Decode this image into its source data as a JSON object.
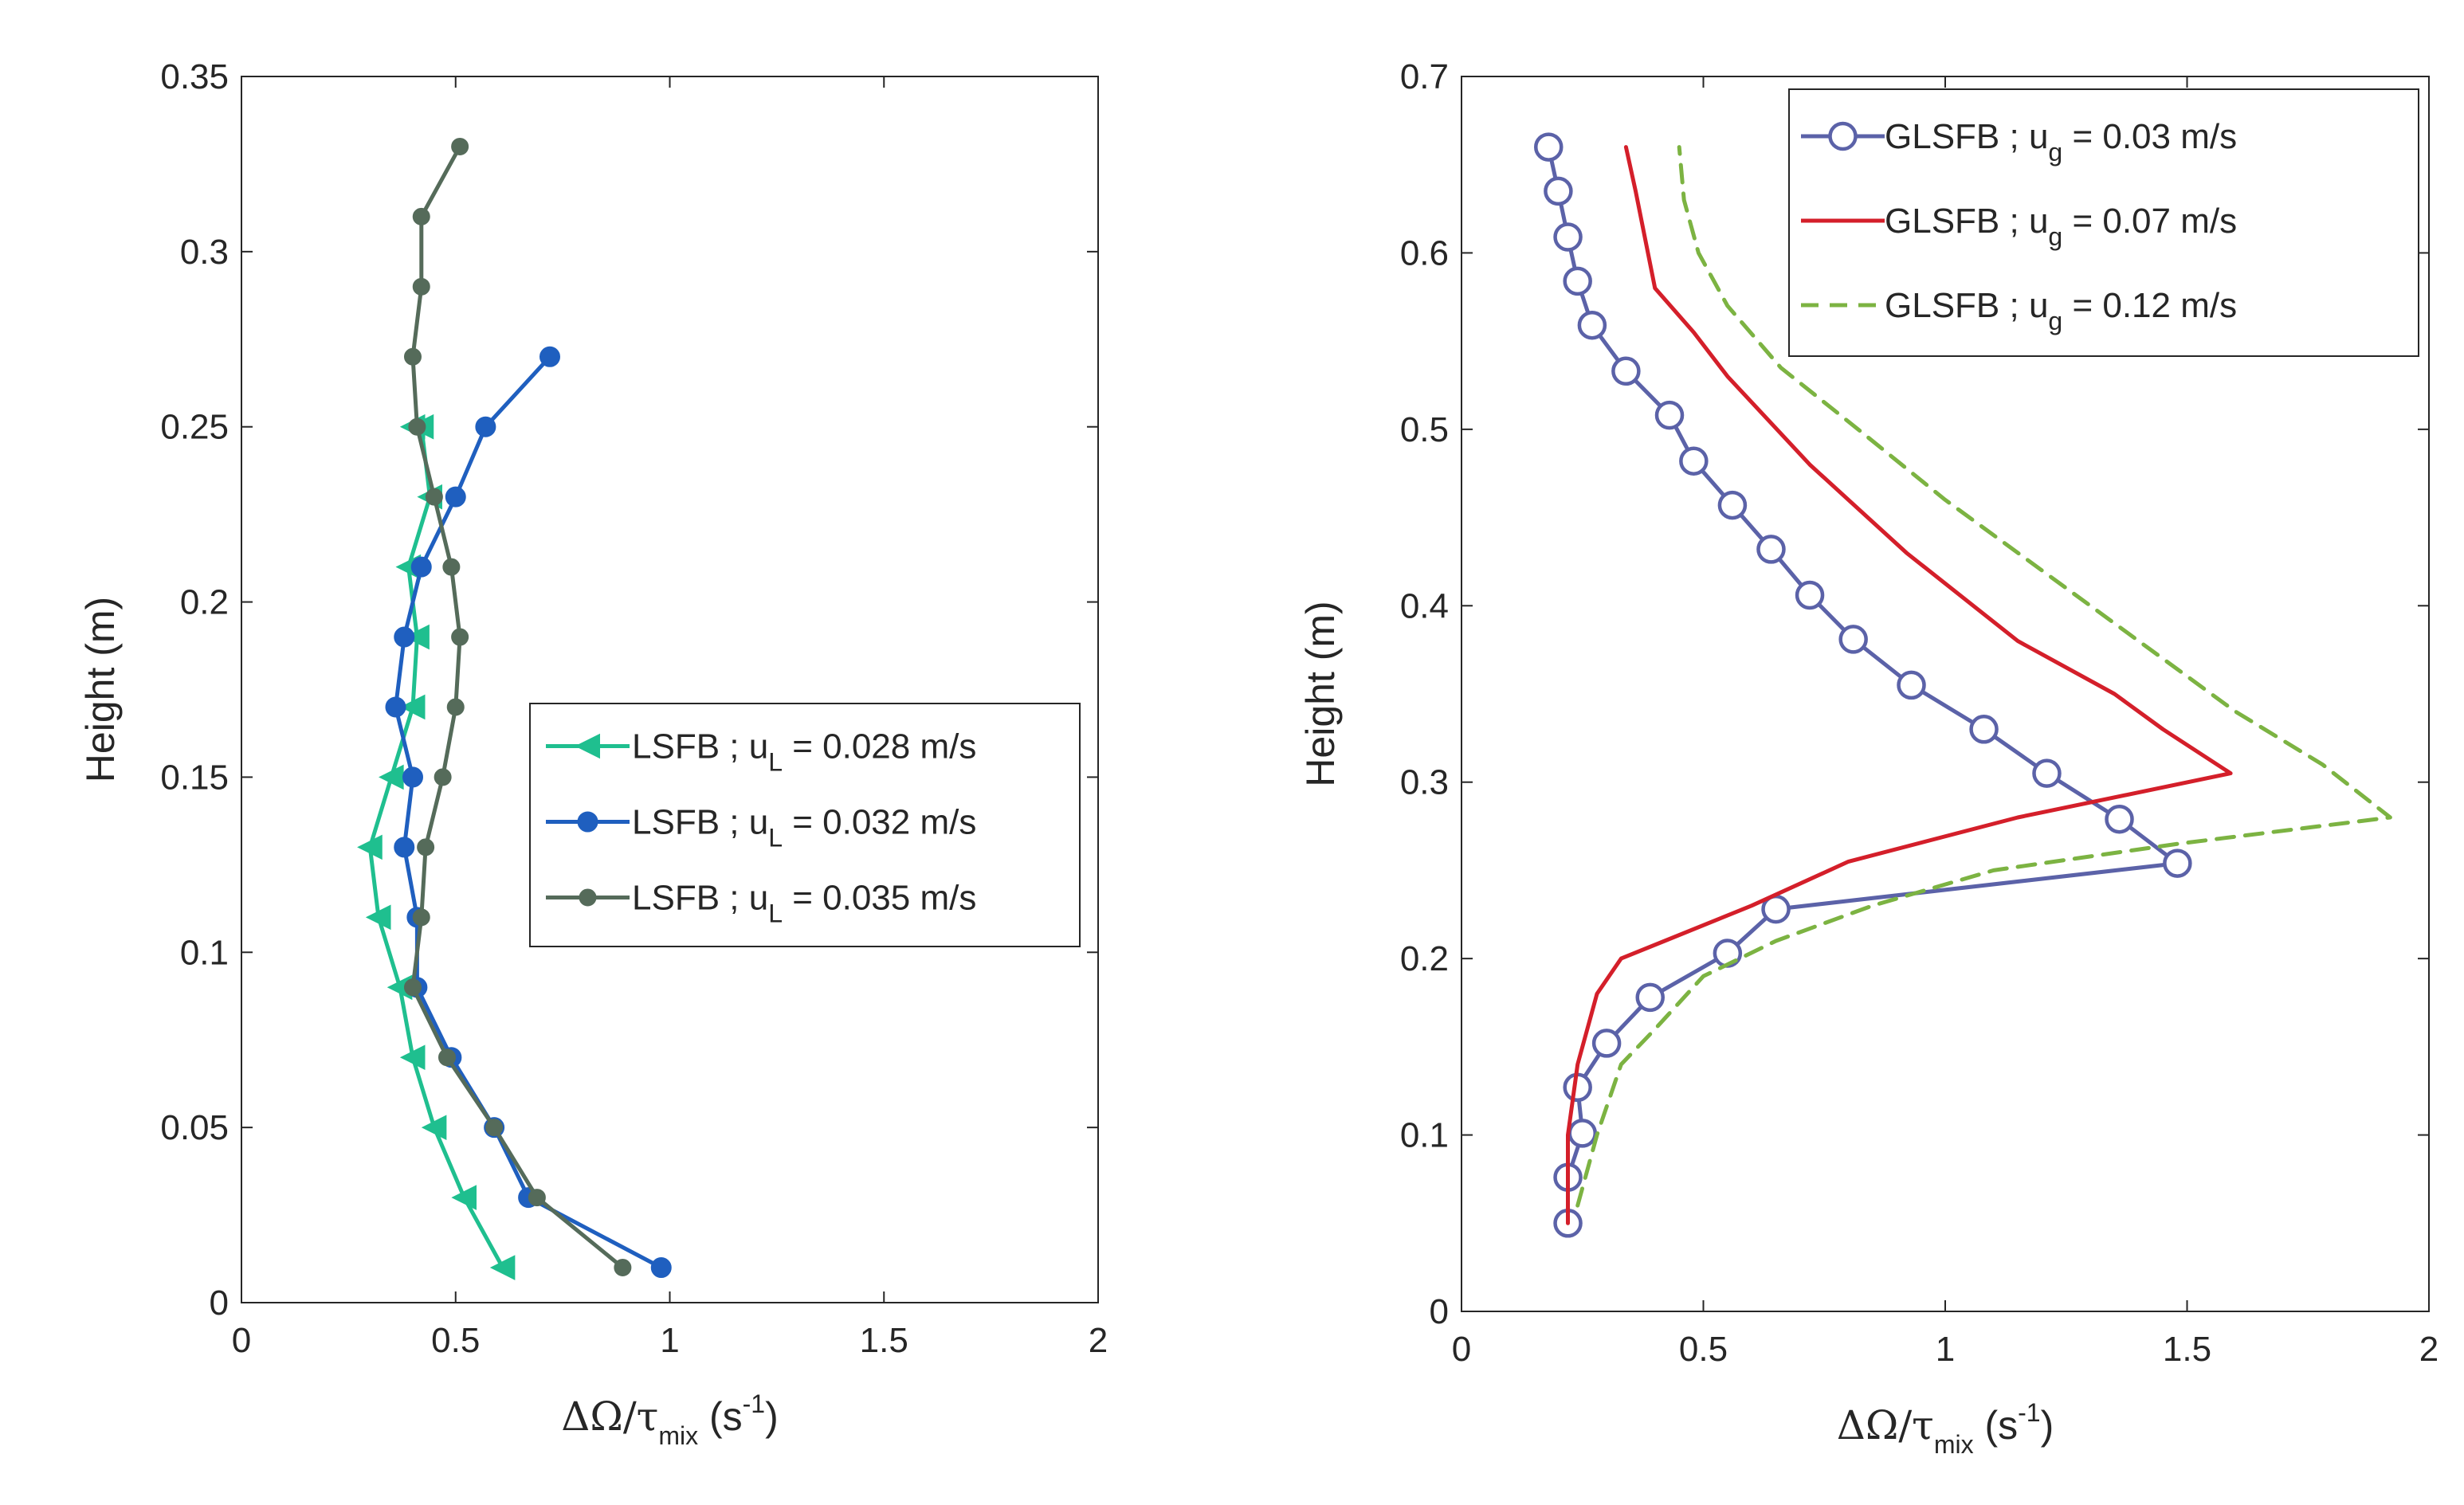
{
  "chart_data": [
    {
      "type": "line",
      "xlabel": "ΔΩ/τmix (s-1)",
      "xlabel_parts": {
        "main": "ΔΩ/τ",
        "sub": "mix",
        "paren": " (s",
        "sup": "-1",
        "close": ")"
      },
      "ylabel": "Height (m)",
      "xlim": [
        0,
        2
      ],
      "ylim": [
        0,
        0.35
      ],
      "xticks": [
        "0",
        "0.5",
        "1",
        "1.5",
        "2"
      ],
      "yticks": [
        "0",
        "0.05",
        "0.1",
        "0.15",
        "0.2",
        "0.25",
        "0.3",
        "0.35"
      ],
      "grid": false,
      "legend_location": "center-right",
      "series": [
        {
          "name": "LSFB ; uL = 0.028 m/s",
          "legend_parts": {
            "main": "LSFB ; u",
            "sub": "L",
            "rest": " = 0.028 m/s"
          },
          "color": "#1fbf8f",
          "marker": "triangle-left",
          "x": [
            0.61,
            0.52,
            0.45,
            0.4,
            0.37,
            0.32,
            0.3,
            0.35,
            0.4,
            0.41,
            0.39,
            0.44,
            0.42,
            0.4
          ],
          "y": [
            0.01,
            0.03,
            0.05,
            0.07,
            0.09,
            0.11,
            0.13,
            0.15,
            0.17,
            0.19,
            0.21,
            0.23,
            0.25,
            0.25
          ]
        },
        {
          "name": "LSFB ; uL = 0.032 m/s",
          "legend_parts": {
            "main": "LSFB ; u",
            "sub": "L",
            "rest": " = 0.032 m/s"
          },
          "color": "#1f5fbf",
          "marker": "circle",
          "x": [
            0.98,
            0.67,
            0.59,
            0.49,
            0.41,
            0.41,
            0.38,
            0.4,
            0.36,
            0.38,
            0.42,
            0.5,
            0.57,
            0.72
          ],
          "y": [
            0.01,
            0.03,
            0.05,
            0.07,
            0.09,
            0.11,
            0.13,
            0.15,
            0.17,
            0.19,
            0.21,
            0.23,
            0.25,
            0.27
          ]
        },
        {
          "name": "LSFB ; uL = 0.035 m/s",
          "legend_parts": {
            "main": "LSFB ; u",
            "sub": "L",
            "rest": " = 0.035 m/s"
          },
          "color": "#556b5a",
          "marker": "dot",
          "x": [
            0.89,
            0.69,
            0.59,
            0.48,
            0.4,
            0.42,
            0.43,
            0.47,
            0.5,
            0.51,
            0.49,
            0.45,
            0.41,
            0.4,
            0.42,
            0.42,
            0.51
          ],
          "y": [
            0.01,
            0.03,
            0.05,
            0.07,
            0.09,
            0.11,
            0.13,
            0.15,
            0.17,
            0.19,
            0.21,
            0.23,
            0.25,
            0.27,
            0.29,
            0.31,
            0.33
          ]
        }
      ]
    },
    {
      "type": "line",
      "xlabel": "ΔΩ/τmix (s-1)",
      "xlabel_parts": {
        "main": "ΔΩ/τ",
        "sub": "mix",
        "paren": " (s",
        "sup": "-1",
        "close": ")"
      },
      "ylabel": "Height (m)",
      "xlim": [
        0,
        2
      ],
      "ylim": [
        0,
        0.7
      ],
      "xticks": [
        "0",
        "0.5",
        "1",
        "1.5",
        "2"
      ],
      "yticks": [
        "0",
        "0.1",
        "0.2",
        "0.3",
        "0.4",
        "0.5",
        "0.6",
        "0.7"
      ],
      "grid": false,
      "legend_location": "top-right",
      "series": [
        {
          "name": "GLSFB ; ug = 0.03 m/s",
          "legend_parts": {
            "main": "GLSFB ; u",
            "sub": "g",
            "rest": " = 0.03 m/s"
          },
          "color": "#5b62a8",
          "marker": "open-circle",
          "style": "solid",
          "x": [
            0.22,
            0.22,
            0.25,
            0.24,
            0.3,
            0.39,
            0.55,
            0.65,
            1.48,
            1.36,
            1.21,
            1.08,
            0.93,
            0.81,
            0.72,
            0.64,
            0.56,
            0.48,
            0.43,
            0.34,
            0.27,
            0.24,
            0.22,
            0.2,
            0.18
          ],
          "y": [
            0.05,
            0.076,
            0.101,
            0.127,
            0.152,
            0.178,
            0.203,
            0.228,
            0.254,
            0.279,
            0.305,
            0.33,
            0.355,
            0.381,
            0.406,
            0.432,
            0.457,
            0.482,
            0.508,
            0.533,
            0.559,
            0.584,
            0.609,
            0.635,
            0.66
          ]
        },
        {
          "name": "GLSFB ; ug = 0.07 m/s",
          "legend_parts": {
            "main": "GLSFB ; u",
            "sub": "g",
            "rest": " = 0.07 m/s"
          },
          "color": "#d41f2a",
          "marker": "none",
          "style": "solid",
          "x": [
            0.22,
            0.22,
            0.24,
            0.28,
            0.33,
            0.42,
            0.6,
            0.8,
            1.15,
            1.59,
            1.45,
            1.35,
            1.15,
            0.92,
            0.72,
            0.55,
            0.48,
            0.4,
            0.36,
            0.34
          ],
          "y": [
            0.05,
            0.1,
            0.14,
            0.18,
            0.2,
            0.21,
            0.23,
            0.255,
            0.28,
            0.305,
            0.33,
            0.35,
            0.38,
            0.43,
            0.48,
            0.53,
            0.555,
            0.58,
            0.635,
            0.66
          ]
        },
        {
          "name": "GLSFB ; ug = 0.12 m/s",
          "legend_parts": {
            "main": "GLSFB ; u",
            "sub": "g",
            "rest": " = 0.12 m/s"
          },
          "color": "#7cb342",
          "marker": "none",
          "style": "dashed",
          "x": [
            0.24,
            0.28,
            0.33,
            0.4,
            0.5,
            0.65,
            0.85,
            1.1,
            1.48,
            1.92,
            1.78,
            1.6,
            1.4,
            1.2,
            1.0,
            0.82,
            0.66,
            0.55,
            0.49,
            0.46,
            0.45
          ],
          "y": [
            0.06,
            0.1,
            0.14,
            0.16,
            0.19,
            0.21,
            0.23,
            0.25,
            0.265,
            0.28,
            0.31,
            0.34,
            0.38,
            0.42,
            0.46,
            0.5,
            0.535,
            0.57,
            0.6,
            0.63,
            0.66
          ]
        }
      ]
    }
  ]
}
